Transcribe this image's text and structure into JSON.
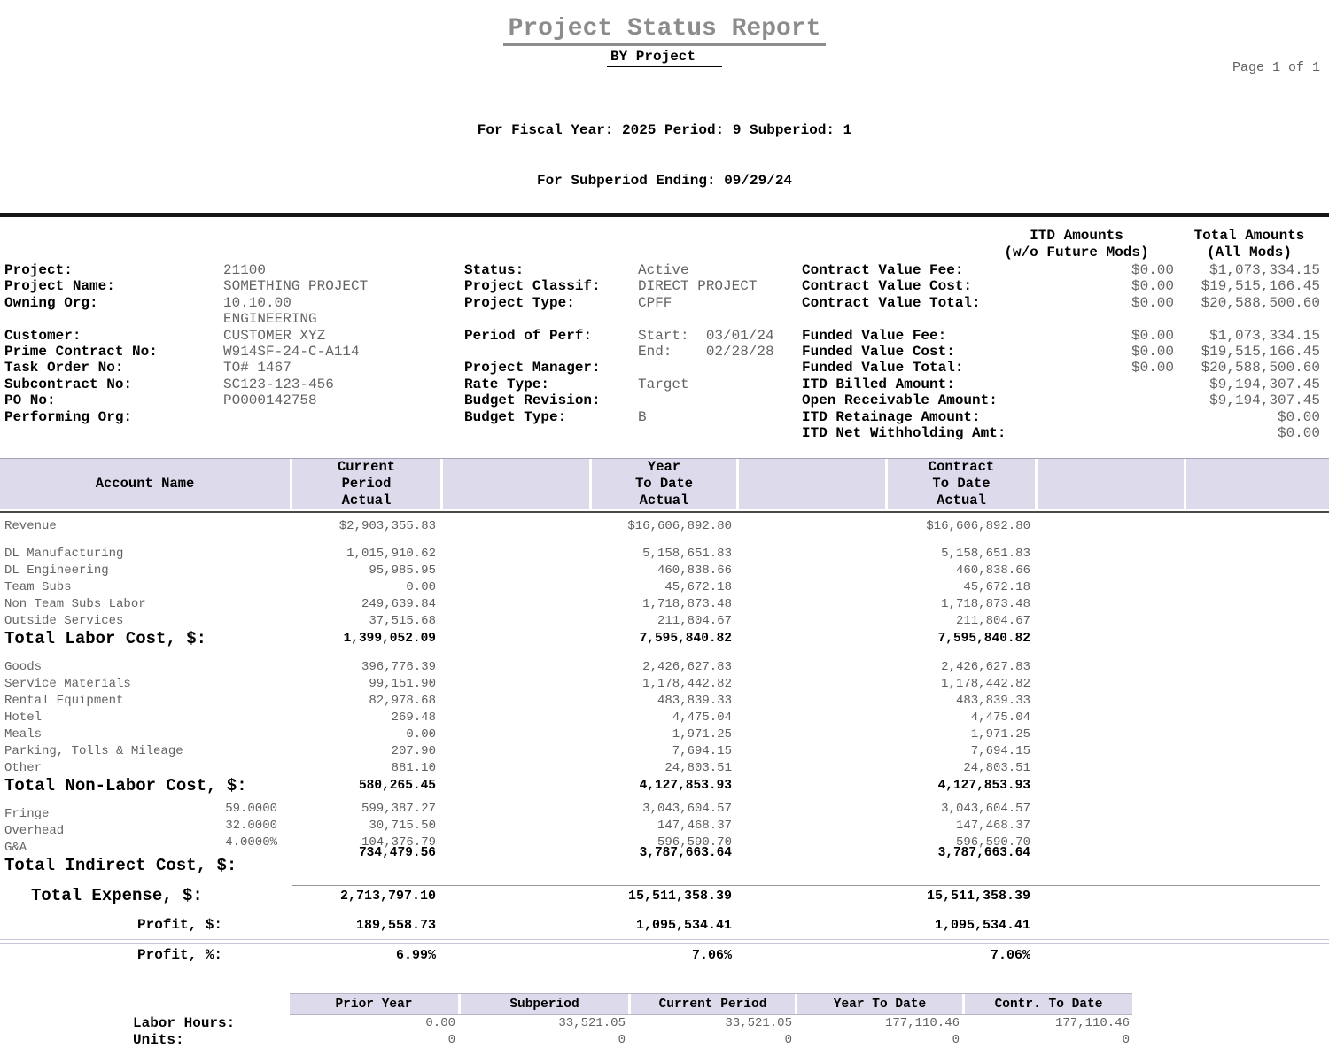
{
  "report": {
    "title": "Project Status Report",
    "subtitle": "BY Project",
    "page_label": "Page 1 of 1",
    "fiscal_line1": "For Fiscal Year: 2025 Period: 9 Subperiod: 1",
    "fiscal_line2": "For Subperiod Ending: 09/29/24"
  },
  "colors": {
    "header_band": "#dcdaeb",
    "title_gray": "#8c8c8c",
    "value_gray": "#636363",
    "rule_black": "#151515"
  },
  "info_headers": {
    "itd_line1": "ITD Amounts",
    "itd_line2": "(w/o Future Mods)",
    "total_line1": "Total Amounts",
    "total_line2": "(All Mods)"
  },
  "info_rows": [
    {
      "ll": "Project:",
      "lv": "21100",
      "ml": "Status:",
      "mv": "Active",
      "rl": "Contract Value Fee:",
      "itd": "$0.00",
      "tot": "$1,073,334.15"
    },
    {
      "ll": "Project Name:",
      "lv": "SOMETHING PROJECT",
      "ml": "Project Classif:",
      "mv": "DIRECT PROJECT",
      "rl": "Contract Value Cost:",
      "itd": "$0.00",
      "tot": "$19,515,166.45"
    },
    {
      "ll": "Owning Org:",
      "lv": "10.10.00",
      "ml": "Project Type:",
      "mv": "CPFF",
      "rl": "Contract Value Total:",
      "itd": "$0.00",
      "tot": "$20,588,500.60"
    },
    {
      "ll": "",
      "lv": "ENGINEERING",
      "ml": "",
      "mv": "",
      "rl": "",
      "itd": "",
      "tot": ""
    },
    {
      "ll": "Customer:",
      "lv": "CUSTOMER XYZ",
      "ml": "Period of Perf:",
      "mv": "Start:  03/01/24",
      "rl": "Funded Value Fee:",
      "itd": "$0.00",
      "tot": "$1,073,334.15"
    },
    {
      "ll": "Prime Contract No:",
      "lv": "W914SF-24-C-A114",
      "ml": "",
      "mv": "End:    02/28/28",
      "rl": "Funded Value Cost:",
      "itd": "$0.00",
      "tot": "$19,515,166.45"
    },
    {
      "ll": "Task Order No:",
      "lv": "TO# 1467",
      "ml": "Project Manager:",
      "mv": "",
      "rl": "Funded Value Total:",
      "itd": "$0.00",
      "tot": "$20,588,500.60"
    },
    {
      "ll": "Subcontract No:",
      "lv": "SC123-123-456",
      "ml": "Rate Type:",
      "mv": "Target",
      "rl": "ITD Billed Amount:",
      "itd": "",
      "tot": "$9,194,307.45"
    },
    {
      "ll": "PO No:",
      "lv": "PO000142758",
      "ml": "Budget Revision:",
      "mv": "",
      "rl": "Open Receivable Amount:",
      "itd": "",
      "tot": "$9,194,307.45"
    },
    {
      "ll": "Performing Org:",
      "lv": "",
      "ml": "Budget Type:",
      "mv": "B",
      "rl": "ITD Retainage Amount:",
      "itd": "",
      "tot": "$0.00"
    },
    {
      "ll": "",
      "lv": "",
      "ml": "",
      "mv": "",
      "rl": "ITD Net Withholding Amt:",
      "itd": "",
      "tot": "$0.00"
    }
  ],
  "table": {
    "header": {
      "account": "Account Name",
      "current": "Current\nPeriod\nActual",
      "ytd": "Year\nTo Date\nActual",
      "ctd": "Contract\nTo Date\nActual"
    },
    "rows": [
      {
        "style": "data",
        "label": "Revenue",
        "cur": "$2,903,355.83",
        "ytd": "$16,606,892.80",
        "ctd": "$16,606,892.80"
      },
      {
        "style": "spacer"
      },
      {
        "style": "data",
        "label": "DL Manufacturing",
        "cur": "1,015,910.62",
        "ytd": "5,158,651.83",
        "ctd": "5,158,651.83"
      },
      {
        "style": "data",
        "label": "DL Engineering",
        "cur": "95,985.95",
        "ytd": "460,838.66",
        "ctd": "460,838.66"
      },
      {
        "style": "data",
        "label": "Team Subs",
        "cur": "0.00",
        "ytd": "45,672.18",
        "ctd": "45,672.18"
      },
      {
        "style": "data",
        "label": "Non Team Subs Labor",
        "cur": "249,639.84",
        "ytd": "1,718,873.48",
        "ctd": "1,718,873.48"
      },
      {
        "style": "data",
        "label": "Outside Services",
        "cur": "37,515.68",
        "ytd": "211,804.67",
        "ctd": "211,804.67"
      },
      {
        "style": "total",
        "label": "Total Labor Cost, $:",
        "cur": "1,399,052.09",
        "ytd": "7,595,840.82",
        "ctd": "7,595,840.82"
      },
      {
        "style": "spacer"
      },
      {
        "style": "data",
        "label": "Goods",
        "cur": "396,776.39",
        "ytd": "2,426,627.83",
        "ctd": "2,426,627.83"
      },
      {
        "style": "data",
        "label": "Service Materials",
        "cur": "99,151.90",
        "ytd": "1,178,442.82",
        "ctd": "1,178,442.82"
      },
      {
        "style": "data",
        "label": "Rental Equipment",
        "cur": "82,978.68",
        "ytd": "483,839.33",
        "ctd": "483,839.33"
      },
      {
        "style": "data",
        "label": "Hotel",
        "cur": "269.48",
        "ytd": "4,475.04",
        "ctd": "4,475.04"
      },
      {
        "style": "data",
        "label": "Meals",
        "cur": "0.00",
        "ytd": "1,971.25",
        "ctd": "1,971.25"
      },
      {
        "style": "data",
        "label": "Parking, Tolls & Mileage",
        "cur": "207.90",
        "ytd": "7,694.15",
        "ctd": "7,694.15"
      },
      {
        "style": "data",
        "label": "Other",
        "cur": "881.10",
        "ytd": "24,803.51",
        "ctd": "24,803.51"
      },
      {
        "style": "total",
        "label": "Total Non-Labor Cost, $:",
        "cur": "580,265.45",
        "ytd": "4,127,853.93",
        "ctd": "4,127,853.93"
      },
      {
        "style": "spacer"
      },
      {
        "style": "data",
        "stagger": true,
        "label": "Fringe",
        "rate": "59.0000",
        "cur": "599,387.27",
        "ytd": "3,043,604.57",
        "ctd": "3,043,604.57"
      },
      {
        "style": "data",
        "stagger": true,
        "label": "Overhead",
        "rate": "32.0000",
        "cur": "30,715.50",
        "ytd": "147,468.37",
        "ctd": "147,468.37"
      },
      {
        "style": "data",
        "stagger": true,
        "label": "G&A",
        "rate": "4.0000%",
        "cur": "104,376.79",
        "ytd": "596,590.70",
        "ctd": "596,590.70"
      },
      {
        "style": "totalind",
        "label": "Total Indirect Cost, $:",
        "cur": "734,479.56",
        "ytd": "3,787,663.64",
        "ctd": "3,787,663.64"
      }
    ],
    "total_expense": {
      "label": "Total Expense, $:",
      "cur": "2,713,797.10",
      "ytd": "15,511,358.39",
      "ctd": "15,511,358.39"
    },
    "profit_amt": {
      "label": "Profit, $:",
      "cur": "189,558.73",
      "ytd": "1,095,534.41",
      "ctd": "1,095,534.41"
    },
    "profit_pct": {
      "label": "Profit, %:",
      "cur": "6.99%",
      "ytd": "7.06%",
      "ctd": "7.06%"
    }
  },
  "hours_table": {
    "columns": [
      "Prior Year",
      "Subperiod",
      "Current Period",
      "Year To Date",
      "Contr. To Date"
    ],
    "rows": [
      {
        "label": "Labor Hours:",
        "values": [
          "0.00",
          "33,521.05",
          "33,521.05",
          "177,110.46",
          "177,110.46"
        ]
      },
      {
        "label": "Units:",
        "values": [
          "0",
          "0",
          "0",
          "0",
          "0"
        ]
      }
    ]
  }
}
